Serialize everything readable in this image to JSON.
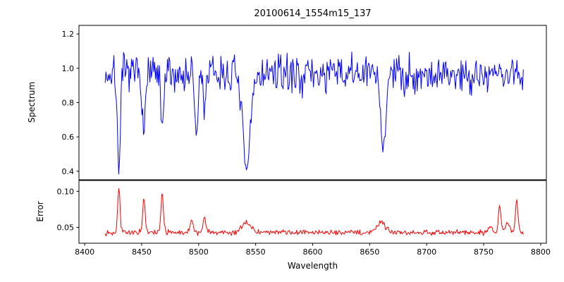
{
  "chart_data": {
    "type": "line",
    "title": "20100614_1554m15_137",
    "xlabel": "Wavelength",
    "grid": false,
    "legend": false,
    "xlim": [
      8395,
      8805
    ],
    "x_ticks": [
      8400,
      8450,
      8500,
      8550,
      8600,
      8650,
      8700,
      8750,
      8800
    ],
    "x_data_range": [
      8418,
      8785
    ],
    "sample_step": 0.7,
    "subplots": [
      {
        "name": "spectrum",
        "ylabel": "Spectrum",
        "color": "#0000ff",
        "ylim": [
          0.35,
          1.25
        ],
        "y_ticks": [
          0.4,
          0.6,
          0.8,
          1.0,
          1.2
        ],
        "y_tick_labels": [
          "0.4",
          "0.6",
          "0.8",
          "1.0",
          "1.2"
        ],
        "baseline": 0.965,
        "noise_amp": 0.11,
        "noise_seed": 7,
        "features": [
          {
            "center": 8430,
            "amp": -0.55,
            "width": 1.8
          },
          {
            "center": 8452,
            "amp": -0.34,
            "width": 1.8
          },
          {
            "center": 8468,
            "amp": -0.33,
            "width": 1.8
          },
          {
            "center": 8498,
            "amp": -0.36,
            "width": 2.0
          },
          {
            "center": 8505,
            "amp": -0.2,
            "width": 1.5
          },
          {
            "center": 8542,
            "amp": -0.57,
            "width": 4.5
          },
          {
            "center": 8662,
            "amp": -0.43,
            "width": 3.0
          }
        ]
      },
      {
        "name": "error",
        "ylabel": "Error",
        "color": "#ff0000",
        "ylim": [
          0.028,
          0.115
        ],
        "y_ticks": [
          0.05,
          0.1
        ],
        "y_tick_labels": [
          "0.05",
          "0.10"
        ],
        "baseline": 0.043,
        "noise_amp": 0.0035,
        "noise_seed": 13,
        "features": [
          {
            "center": 8430,
            "amp": 0.062,
            "width": 1.5
          },
          {
            "center": 8452,
            "amp": 0.047,
            "width": 1.5
          },
          {
            "center": 8468,
            "amp": 0.057,
            "width": 1.5
          },
          {
            "center": 8494,
            "amp": 0.018,
            "width": 1.8
          },
          {
            "center": 8505,
            "amp": 0.02,
            "width": 1.8
          },
          {
            "center": 8542,
            "amp": 0.013,
            "width": 6.0
          },
          {
            "center": 8660,
            "amp": 0.015,
            "width": 5.0
          },
          {
            "center": 8756,
            "amp": 0.008,
            "width": 2.0
          },
          {
            "center": 8764,
            "amp": 0.04,
            "width": 1.5
          },
          {
            "center": 8771,
            "amp": 0.014,
            "width": 3.0
          },
          {
            "center": 8779,
            "amp": 0.046,
            "width": 1.5
          }
        ]
      }
    ]
  }
}
